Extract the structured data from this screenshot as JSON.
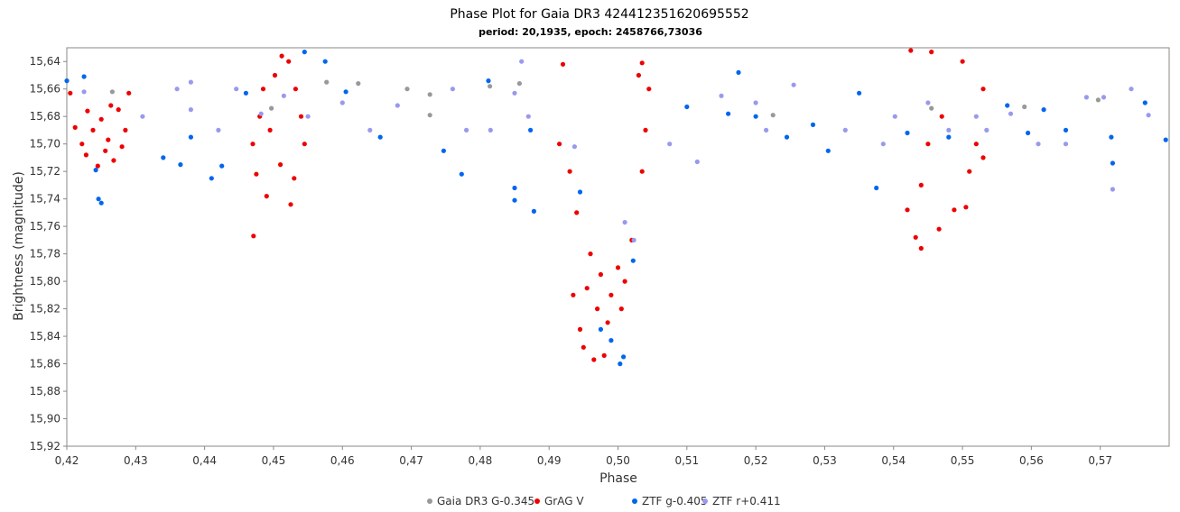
{
  "chart_data": {
    "type": "scatter",
    "title": "Phase Plot for Gaia DR3 424412351620695552",
    "subtitle": "period: 20,1935, epoch: 2458766,73036",
    "xlabel": "Phase",
    "ylabel": "Brightness (magnitude)",
    "xlim": [
      0.42,
      0.58
    ],
    "ylim": [
      15.63,
      15.92
    ],
    "y_inverted": true,
    "grid": false,
    "legend_position": "bottom",
    "x_ticks": [
      {
        "v": 0.42,
        "label": "0,42"
      },
      {
        "v": 0.43,
        "label": "0,43"
      },
      {
        "v": 0.44,
        "label": "0,44"
      },
      {
        "v": 0.45,
        "label": "0,45"
      },
      {
        "v": 0.46,
        "label": "0,46"
      },
      {
        "v": 0.47,
        "label": "0,47"
      },
      {
        "v": 0.48,
        "label": "0,48"
      },
      {
        "v": 0.49,
        "label": "0,49"
      },
      {
        "v": 0.5,
        "label": "0,50"
      },
      {
        "v": 0.51,
        "label": "0,51"
      },
      {
        "v": 0.52,
        "label": "0,52"
      },
      {
        "v": 0.53,
        "label": "0,53"
      },
      {
        "v": 0.54,
        "label": "0,54"
      },
      {
        "v": 0.55,
        "label": "0,55"
      },
      {
        "v": 0.56,
        "label": "0,56"
      },
      {
        "v": 0.57,
        "label": "0,57"
      }
    ],
    "y_ticks": [
      {
        "v": 15.64,
        "label": "15,64"
      },
      {
        "v": 15.66,
        "label": "15,66"
      },
      {
        "v": 15.68,
        "label": "15,68"
      },
      {
        "v": 15.7,
        "label": "15,70"
      },
      {
        "v": 15.72,
        "label": "15,72"
      },
      {
        "v": 15.74,
        "label": "15,74"
      },
      {
        "v": 15.76,
        "label": "15,76"
      },
      {
        "v": 15.78,
        "label": "15,78"
      },
      {
        "v": 15.8,
        "label": "15,80"
      },
      {
        "v": 15.82,
        "label": "15,82"
      },
      {
        "v": 15.84,
        "label": "15,84"
      },
      {
        "v": 15.86,
        "label": "15,86"
      },
      {
        "v": 15.88,
        "label": "15,88"
      },
      {
        "v": 15.9,
        "label": "15,90"
      },
      {
        "v": 15.92,
        "label": "15,92"
      }
    ],
    "series": [
      {
        "name": "Gaia DR3 G-0.345",
        "color": "#999999",
        "points": [
          [
            0.4266,
            15.662
          ],
          [
            0.4497,
            15.674
          ],
          [
            0.4577,
            15.655
          ],
          [
            0.4623,
            15.656
          ],
          [
            0.4694,
            15.66
          ],
          [
            0.4727,
            15.664
          ],
          [
            0.4727,
            15.679
          ],
          [
            0.4814,
            15.658
          ],
          [
            0.4857,
            15.656
          ],
          [
            0.5225,
            15.679
          ],
          [
            0.5455,
            15.674
          ],
          [
            0.559,
            15.673
          ],
          [
            0.5697,
            15.668
          ]
        ]
      },
      {
        "name": "GrAG V",
        "color": "#ee0000",
        "points": [
          [
            0.4205,
            15.663
          ],
          [
            0.423,
            15.676
          ],
          [
            0.426,
            15.697
          ],
          [
            0.4245,
            15.716
          ],
          [
            0.429,
            15.663
          ],
          [
            0.4275,
            15.675
          ],
          [
            0.428,
            15.702
          ],
          [
            0.4268,
            15.712
          ],
          [
            0.4212,
            15.688
          ],
          [
            0.4222,
            15.7
          ],
          [
            0.4238,
            15.69
          ],
          [
            0.425,
            15.682
          ],
          [
            0.4285,
            15.69
          ],
          [
            0.4228,
            15.708
          ],
          [
            0.4264,
            15.672
          ],
          [
            0.4256,
            15.705
          ],
          [
            0.4471,
            15.767
          ],
          [
            0.4475,
            15.722
          ],
          [
            0.449,
            15.738
          ],
          [
            0.4512,
            15.636
          ],
          [
            0.4522,
            15.64
          ],
          [
            0.4525,
            15.744
          ],
          [
            0.4545,
            15.7
          ],
          [
            0.4532,
            15.66
          ],
          [
            0.4502,
            15.65
          ],
          [
            0.448,
            15.68
          ],
          [
            0.447,
            15.7
          ],
          [
            0.4495,
            15.69
          ],
          [
            0.451,
            15.715
          ],
          [
            0.454,
            15.68
          ],
          [
            0.4485,
            15.66
          ],
          [
            0.453,
            15.725
          ],
          [
            0.492,
            15.642
          ],
          [
            0.4915,
            15.7
          ],
          [
            0.493,
            15.72
          ],
          [
            0.494,
            15.75
          ],
          [
            0.496,
            15.78
          ],
          [
            0.4975,
            15.795
          ],
          [
            0.499,
            15.81
          ],
          [
            0.501,
            15.8
          ],
          [
            0.502,
            15.77
          ],
          [
            0.5035,
            15.72
          ],
          [
            0.504,
            15.69
          ],
          [
            0.5045,
            15.66
          ],
          [
            0.503,
            15.65
          ],
          [
            0.5035,
            15.641
          ],
          [
            0.495,
            15.848
          ],
          [
            0.4965,
            15.857
          ],
          [
            0.498,
            15.854
          ],
          [
            0.4945,
            15.835
          ],
          [
            0.5005,
            15.82
          ],
          [
            0.4935,
            15.81
          ],
          [
            0.5,
            15.79
          ],
          [
            0.497,
            15.82
          ],
          [
            0.4985,
            15.83
          ],
          [
            0.4955,
            15.805
          ],
          [
            0.5425,
            15.632
          ],
          [
            0.5455,
            15.633
          ],
          [
            0.5432,
            15.768
          ],
          [
            0.544,
            15.776
          ],
          [
            0.5466,
            15.762
          ],
          [
            0.542,
            15.748
          ],
          [
            0.5488,
            15.748
          ],
          [
            0.5505,
            15.746
          ],
          [
            0.551,
            15.72
          ],
          [
            0.553,
            15.66
          ],
          [
            0.545,
            15.7
          ],
          [
            0.547,
            15.68
          ],
          [
            0.552,
            15.7
          ],
          [
            0.544,
            15.73
          ],
          [
            0.55,
            15.64
          ],
          [
            0.553,
            15.71
          ]
        ]
      },
      {
        "name": "ZTF g-0.405",
        "color": "#0066ee",
        "points": [
          [
            0.42,
            15.654
          ],
          [
            0.4225,
            15.651
          ],
          [
            0.4246,
            15.74
          ],
          [
            0.425,
            15.743
          ],
          [
            0.4242,
            15.719
          ],
          [
            0.434,
            15.71
          ],
          [
            0.4365,
            15.715
          ],
          [
            0.438,
            15.695
          ],
          [
            0.441,
            15.725
          ],
          [
            0.4425,
            15.716
          ],
          [
            0.446,
            15.663
          ],
          [
            0.4545,
            15.633
          ],
          [
            0.4575,
            15.64
          ],
          [
            0.4605,
            15.662
          ],
          [
            0.4655,
            15.695
          ],
          [
            0.4747,
            15.705
          ],
          [
            0.4773,
            15.722
          ],
          [
            0.4812,
            15.654
          ],
          [
            0.485,
            15.732
          ],
          [
            0.485,
            15.741
          ],
          [
            0.4878,
            15.749
          ],
          [
            0.4873,
            15.69
          ],
          [
            0.4945,
            15.735
          ],
          [
            0.4975,
            15.835
          ],
          [
            0.499,
            15.843
          ],
          [
            0.5003,
            15.86
          ],
          [
            0.5008,
            15.855
          ],
          [
            0.5022,
            15.785
          ],
          [
            0.51,
            15.673
          ],
          [
            0.5175,
            15.648
          ],
          [
            0.5245,
            15.695
          ],
          [
            0.5283,
            15.686
          ],
          [
            0.5305,
            15.705
          ],
          [
            0.5375,
            15.732
          ],
          [
            0.535,
            15.663
          ],
          [
            0.542,
            15.692
          ],
          [
            0.548,
            15.695
          ],
          [
            0.5565,
            15.672
          ],
          [
            0.5595,
            15.692
          ],
          [
            0.5618,
            15.675
          ],
          [
            0.565,
            15.69
          ],
          [
            0.5716,
            15.695
          ],
          [
            0.5718,
            15.714
          ],
          [
            0.5765,
            15.67
          ],
          [
            0.5795,
            15.697
          ],
          [
            0.52,
            15.68
          ],
          [
            0.516,
            15.678
          ]
        ]
      },
      {
        "name": "ZTF r+0.411",
        "color": "#9999ee",
        "points": [
          [
            0.431,
            15.68
          ],
          [
            0.436,
            15.66
          ],
          [
            0.438,
            15.675
          ],
          [
            0.442,
            15.69
          ],
          [
            0.4446,
            15.66
          ],
          [
            0.4482,
            15.678
          ],
          [
            0.4515,
            15.665
          ],
          [
            0.455,
            15.68
          ],
          [
            0.46,
            15.67
          ],
          [
            0.464,
            15.69
          ],
          [
            0.468,
            15.672
          ],
          [
            0.476,
            15.66
          ],
          [
            0.478,
            15.69
          ],
          [
            0.4815,
            15.69
          ],
          [
            0.485,
            15.663
          ],
          [
            0.486,
            15.64
          ],
          [
            0.487,
            15.68
          ],
          [
            0.4937,
            15.702
          ],
          [
            0.5023,
            15.77
          ],
          [
            0.501,
            15.757
          ],
          [
            0.5075,
            15.7
          ],
          [
            0.5115,
            15.713
          ],
          [
            0.515,
            15.665
          ],
          [
            0.52,
            15.67
          ],
          [
            0.5215,
            15.69
          ],
          [
            0.5255,
            15.657
          ],
          [
            0.533,
            15.69
          ],
          [
            0.5385,
            15.7
          ],
          [
            0.5402,
            15.68
          ],
          [
            0.545,
            15.67
          ],
          [
            0.548,
            15.69
          ],
          [
            0.552,
            15.68
          ],
          [
            0.5535,
            15.69
          ],
          [
            0.557,
            15.678
          ],
          [
            0.561,
            15.7
          ],
          [
            0.565,
            15.7
          ],
          [
            0.568,
            15.666
          ],
          [
            0.5705,
            15.666
          ],
          [
            0.5718,
            15.733
          ],
          [
            0.5745,
            15.66
          ],
          [
            0.577,
            15.679
          ],
          [
            0.438,
            15.655
          ],
          [
            0.4225,
            15.662
          ]
        ]
      }
    ]
  }
}
